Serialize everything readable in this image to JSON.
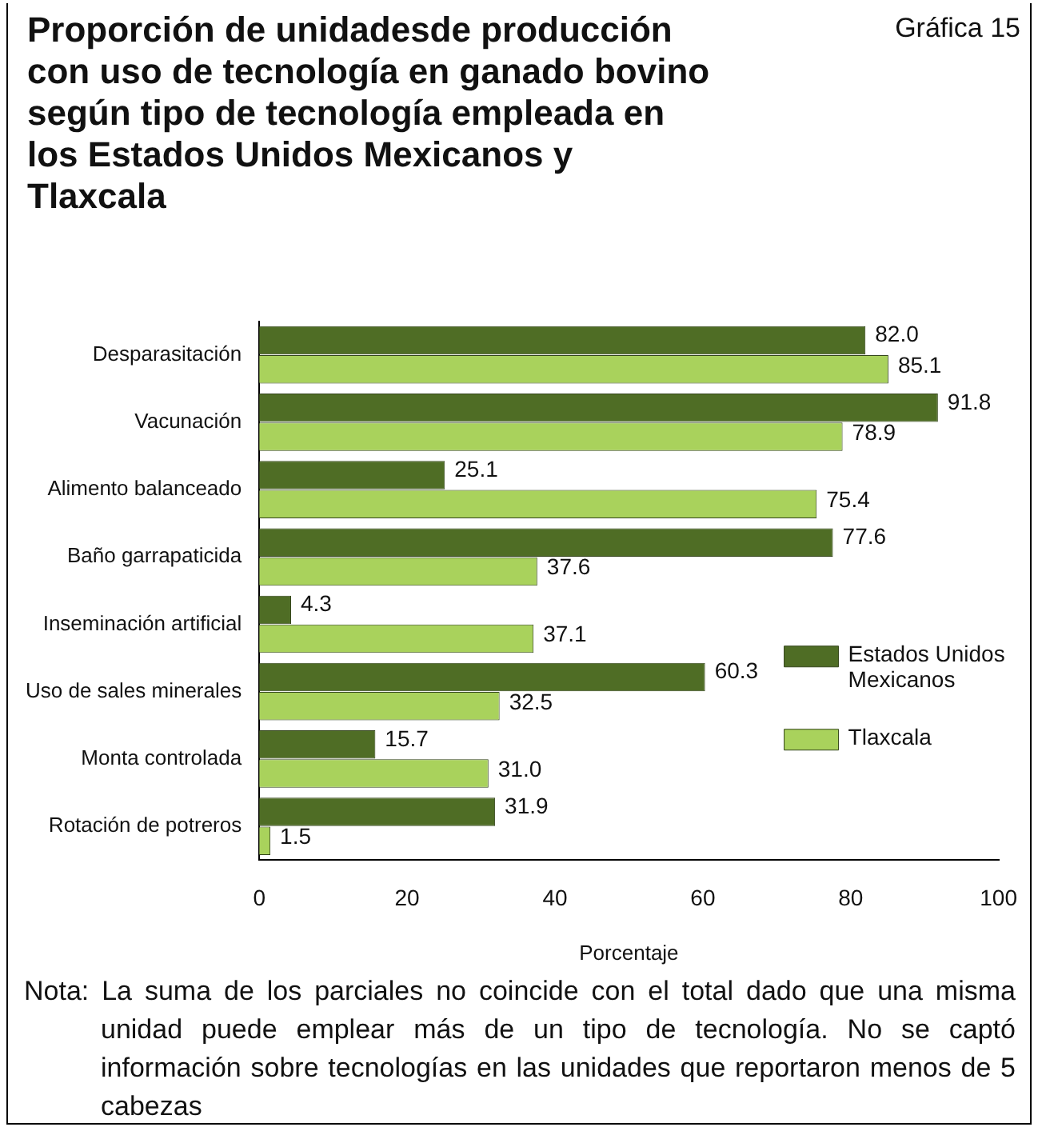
{
  "chart_data": {
    "type": "bar",
    "orientation": "horizontal",
    "title": "Proporción de unidadesde producción con uso de tecnología en ganado bovino según tipo de tecnología empleada en los Estados Unidos Mexicanos y Tlaxcala",
    "subtitle": "Gráfica 15",
    "xlabel": "Porcentaje",
    "categories": [
      "Desparasitación",
      "Vacunación",
      "Alimento balanceado",
      "Baño garrapaticida",
      "Inseminación artificial",
      "Uso de sales minerales",
      "Monta controlada",
      "Rotación de potreros"
    ],
    "series": [
      {
        "name": "Estados Unidos Mexicanos",
        "color": "#4f6d25",
        "values": [
          82.0,
          91.8,
          25.1,
          77.6,
          4.3,
          60.3,
          15.7,
          31.9
        ],
        "value_labels": [
          "82.0",
          "91.8",
          "25.1",
          "77.6",
          "4.3",
          "60.3",
          "15.7",
          "31.9"
        ]
      },
      {
        "name": "Tlaxcala",
        "color": "#a9d25c",
        "values": [
          85.1,
          78.9,
          75.4,
          37.6,
          37.1,
          32.5,
          31.0,
          1.5
        ],
        "value_labels": [
          "85.1",
          "78.9",
          "75.4",
          "37.6",
          "37.1",
          "32.5",
          "31.0",
          "1.5"
        ]
      }
    ],
    "xlim": [
      0,
      100
    ],
    "xticks": [
      0,
      20,
      40,
      60,
      80,
      100
    ],
    "grid": false,
    "legend": "bottom right",
    "annotations": [
      "Nota: La suma de los parciales no coincide con el total dado que una misma unidad puede emplear más de un tipo de tecnología. No se captó información sobre tecnologías en las unidades que reportaron menos de 5 cabezas"
    ]
  }
}
